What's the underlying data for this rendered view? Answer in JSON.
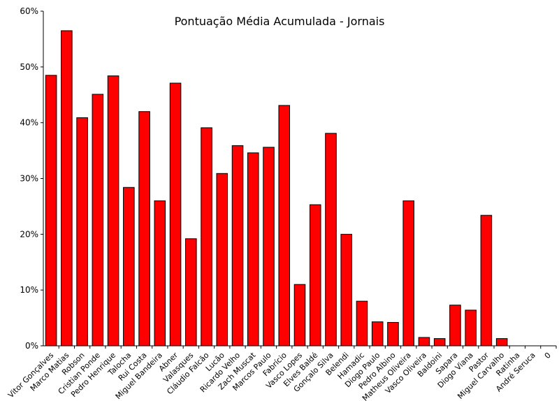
{
  "chart_data": {
    "type": "bar",
    "title": "Pontuação Média Acumulada - Jornais",
    "xlabel": "",
    "ylabel": "",
    "ylim": [
      0,
      60
    ],
    "yticks": [
      "0%",
      "10%",
      "20%",
      "30%",
      "40%",
      "50%",
      "60%"
    ],
    "grid": false,
    "bar_color": "#ff0000",
    "categories": [
      "Vitor Gonçalves",
      "Marco Matias",
      "Robson",
      "Cristian Ponde",
      "Pedro Henrique",
      "Talocha",
      "Rui Costa",
      "Miguel Bandeira",
      "Abner",
      "Valasques",
      "Cláudio Falcão",
      "Lucão",
      "Ricardo Velho",
      "Zach Muscat",
      "Marcos Paulo",
      "Fabrício",
      "Vasco Lopes",
      "Elves Baldé",
      "Gonçalo Silva",
      "Belendi",
      "Hamadic",
      "Diogo Paulo",
      "Pedro Albino",
      "Matheus Oliveira",
      "Vasco Oliveira",
      "Baldoini",
      "Sapara",
      "Diogo Viana",
      "Pastor",
      "Miguel Carvalho",
      "Ratinha",
      "André Seruca",
      "0"
    ],
    "values": [
      48.5,
      56.5,
      40.9,
      45.1,
      48.4,
      28.4,
      42.0,
      26.0,
      47.1,
      19.2,
      39.1,
      30.9,
      35.9,
      34.6,
      35.6,
      43.1,
      11.0,
      25.3,
      38.1,
      20.0,
      8.0,
      4.3,
      4.2,
      26.0,
      1.5,
      1.3,
      7.3,
      6.4,
      23.4,
      1.3,
      0,
      0,
      0
    ]
  }
}
